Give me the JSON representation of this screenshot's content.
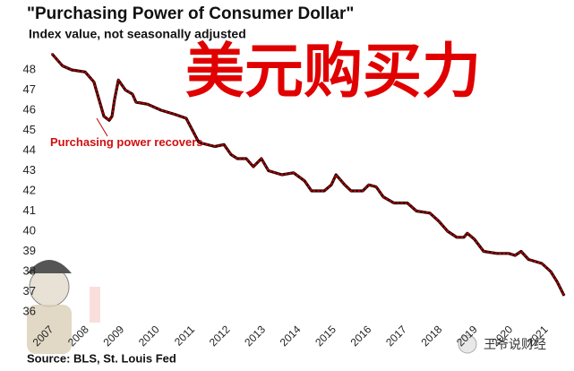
{
  "chart_data": {
    "type": "line",
    "title": "\"Purchasing Power of Consumer Dollar\"",
    "subtitle": "Index value, not seasonally adjusted",
    "overlay_title": "美元购买力",
    "annotation": "Purchasing power recovers",
    "source": "Source: BLS, St. Louis Fed",
    "watermark": "王爷说财经",
    "x": [
      2007.0,
      2007.3,
      2007.56,
      2007.94,
      2008.19,
      2008.32,
      2008.47,
      2008.62,
      2008.7,
      2008.77,
      2008.88,
      2009.08,
      2009.28,
      2009.38,
      2009.71,
      2010.09,
      2010.47,
      2010.8,
      2010.98,
      2011.16,
      2011.61,
      2011.87,
      2012.07,
      2012.25,
      2012.5,
      2012.7,
      2012.93,
      2013.13,
      2013.51,
      2013.84,
      2014.15,
      2014.35,
      2014.71,
      2014.91,
      2015.04,
      2015.29,
      2015.47,
      2015.8,
      2015.97,
      2016.18,
      2016.38,
      2016.68,
      2017.06,
      2017.32,
      2017.7,
      2017.95,
      2018.2,
      2018.46,
      2018.66,
      2018.76,
      2018.96,
      2019.22,
      2019.6,
      2019.93,
      2020.11,
      2020.28,
      2020.49,
      2020.87,
      2021.12,
      2021.3,
      2021.5
    ],
    "series": [
      {
        "name": "Purchasing Power of Consumer Dollar",
        "color": "#c00000",
        "values": [
          48.8,
          48.2,
          48.0,
          47.9,
          47.4,
          46.6,
          45.7,
          45.5,
          45.7,
          46.5,
          47.5,
          47.0,
          46.8,
          46.4,
          46.3,
          46.0,
          45.8,
          45.6,
          45.0,
          44.4,
          44.2,
          44.3,
          43.8,
          43.6,
          43.6,
          43.2,
          43.6,
          43.0,
          42.8,
          42.9,
          42.5,
          42.0,
          42.0,
          42.3,
          42.8,
          42.3,
          42.0,
          42.0,
          42.3,
          42.2,
          41.7,
          41.4,
          41.4,
          41.0,
          40.9,
          40.5,
          40.0,
          39.7,
          39.7,
          39.9,
          39.6,
          39.0,
          38.9,
          38.9,
          38.8,
          39.0,
          38.6,
          38.4,
          38.0,
          37.5,
          36.8
        ]
      }
    ],
    "xlim": [
      2007,
      2021.5
    ],
    "xticks": [
      2007,
      2008,
      2009,
      2010,
      2011,
      2012,
      2013,
      2014,
      2015,
      2016,
      2017,
      2018,
      2019,
      2020,
      2021
    ],
    "ylim": [
      35.7,
      48.9
    ],
    "yticks": [
      36,
      37,
      38,
      39,
      40,
      41,
      42,
      43,
      44,
      45,
      46,
      47,
      48
    ],
    "grid": false
  }
}
